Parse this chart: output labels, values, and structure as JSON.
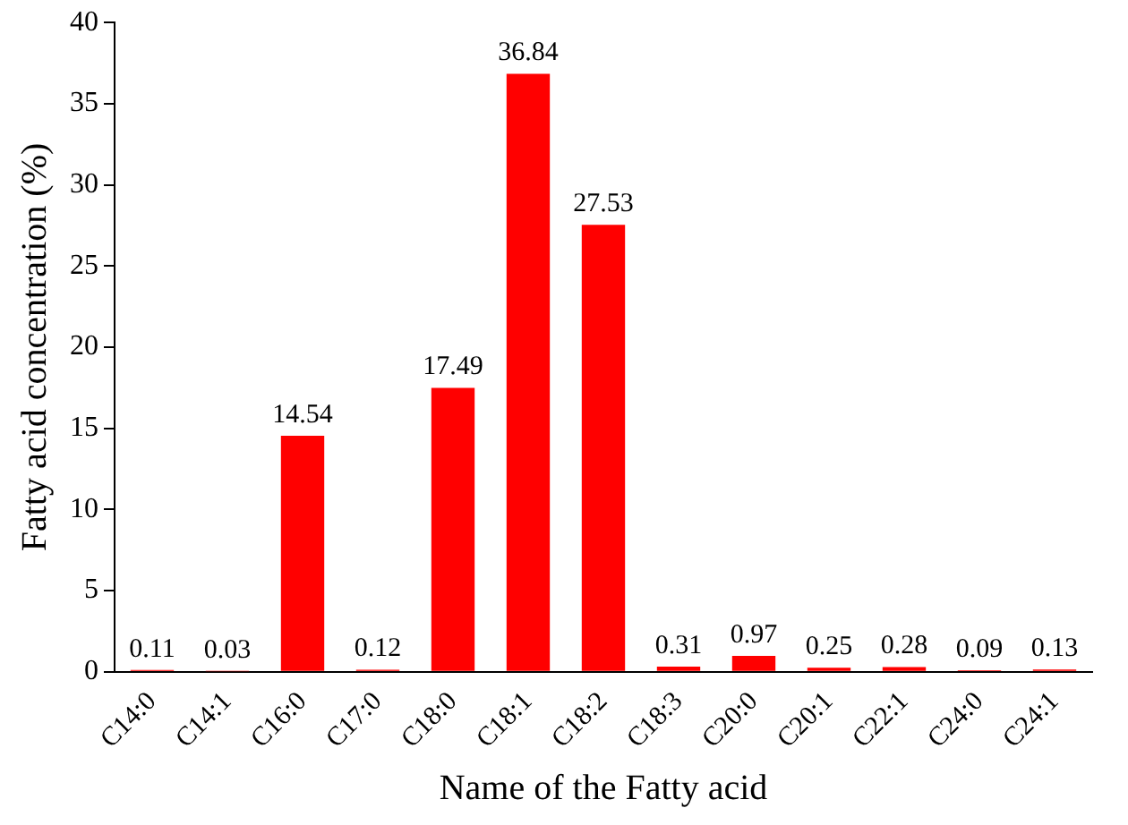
{
  "chart_data": {
    "type": "bar",
    "xlabel": "Name of the Fatty acid",
    "ylabel": "Fatty acid concentration (%)",
    "categories": [
      "C14:0",
      "C14:1",
      "C16:0",
      "C17:0",
      "C18:0",
      "C18:1",
      "C18:2",
      "C18:3",
      "C20:0",
      "C20:1",
      "C22:1",
      "C24:0",
      "C24:1"
    ],
    "values": [
      0.11,
      0.03,
      14.54,
      0.12,
      17.49,
      36.84,
      27.53,
      0.31,
      0.97,
      0.25,
      0.28,
      0.09,
      0.13
    ],
    "color": "#ff0000",
    "ylim": [
      0,
      40
    ],
    "yticks": [
      0,
      5,
      10,
      15,
      20,
      25,
      30,
      35,
      40
    ],
    "grid": false,
    "legend": false,
    "data_labels": true
  }
}
